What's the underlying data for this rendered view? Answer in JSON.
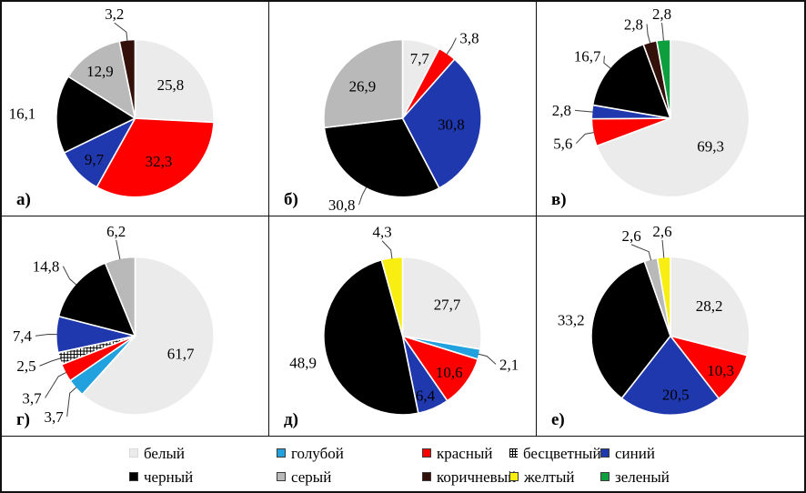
{
  "palette": {
    "white": "#ebebeb",
    "lightblue": "#21a1dd",
    "red": "#fe0000",
    "colorless": "#ffffff",
    "blue": "#2038ad",
    "black": "#000000",
    "gray": "#b9b9b9",
    "brown": "#33100a",
    "yellow": "#f8ee11",
    "green": "#0d9e3d"
  },
  "legend": {
    "rows": [
      [
        {
          "key": "white",
          "label": "белый"
        },
        {
          "key": "lightblue",
          "label": "голубой"
        },
        {
          "key": "red",
          "label": "красный"
        },
        {
          "key": "colorless",
          "label": "бесцветный"
        },
        {
          "key": "blue",
          "label": "синий"
        }
      ],
      [
        {
          "key": "black",
          "label": "черный"
        },
        {
          "key": "gray",
          "label": "серый"
        },
        {
          "key": "brown",
          "label": "коричневый"
        },
        {
          "key": "yellow",
          "label": "желтый"
        },
        {
          "key": "green",
          "label": "зеленый"
        }
      ]
    ]
  },
  "chart_data": [
    {
      "type": "pie",
      "panel": "а)",
      "legend_position": "bottom-shared",
      "start_angle_deg": 0,
      "direction": "clockwise",
      "categories": [
        "white",
        "red",
        "blue",
        "black",
        "gray",
        "brown"
      ],
      "values": [
        25.8,
        32.3,
        9.7,
        16.1,
        12.9,
        3.2
      ],
      "labels": [
        "25,8",
        "32,3",
        "9,7",
        "16,1",
        "12,9",
        "3,2"
      ],
      "label_pos": [
        "in",
        "in",
        "in",
        "out",
        "in",
        "out"
      ],
      "leader": [
        false,
        false,
        false,
        false,
        false,
        true
      ],
      "nudge": [
        [
          0,
          0
        ],
        [
          0,
          0
        ],
        [
          -6,
          8
        ],
        [
          0,
          0
        ],
        [
          -8,
          -8
        ],
        [
          -12,
          0
        ]
      ]
    },
    {
      "type": "pie",
      "panel": "б)",
      "legend_position": "bottom-shared",
      "start_angle_deg": 0,
      "direction": "clockwise",
      "categories": [
        "white",
        "red",
        "blue",
        "black",
        "gray"
      ],
      "values": [
        7.7,
        3.8,
        30.8,
        30.8,
        26.9
      ],
      "labels": [
        "7,7",
        "3,8",
        "30,8",
        "30,8",
        "26,9"
      ],
      "label_pos": [
        "in",
        "out",
        "in",
        "out",
        "in"
      ],
      "leader": [
        false,
        true,
        false,
        true,
        false
      ],
      "nudge": [
        [
          6,
          -14
        ],
        [
          0,
          0
        ],
        [
          0,
          0
        ],
        [
          0,
          0
        ],
        [
          -4,
          0
        ]
      ]
    },
    {
      "type": "pie",
      "panel": "в)",
      "legend_position": "bottom-shared",
      "start_angle_deg": 0,
      "direction": "clockwise",
      "categories": [
        "white",
        "red",
        "blue",
        "black",
        "brown",
        "green"
      ],
      "values": [
        69.3,
        5.6,
        2.8,
        16.7,
        2.8,
        2.8
      ],
      "labels": [
        "69,3",
        "5,6",
        "2,8",
        "16,7",
        "2,8",
        "2,8"
      ],
      "label_pos": [
        "in",
        "out",
        "out",
        "out",
        "out",
        "out"
      ],
      "leader": [
        false,
        true,
        true,
        true,
        true,
        true
      ],
      "nudge": [
        [
          0,
          0
        ],
        [
          0,
          8
        ],
        [
          0,
          0
        ],
        [
          8,
          0
        ],
        [
          0,
          0
        ],
        [
          0,
          0
        ]
      ]
    },
    {
      "type": "pie",
      "panel": "г)",
      "legend_position": "bottom-shared",
      "start_angle_deg": 0,
      "direction": "clockwise",
      "categories": [
        "white",
        "lightblue",
        "red",
        "colorless",
        "blue",
        "black",
        "gray"
      ],
      "values": [
        61.7,
        3.7,
        3.7,
        2.5,
        7.4,
        14.8,
        6.2
      ],
      "labels": [
        "61,7",
        "3,7",
        "3,7",
        "2,5",
        "7,4",
        "14,8",
        "6,2"
      ],
      "label_pos": [
        "in",
        "out",
        "out",
        "out",
        "out",
        "out",
        "out"
      ],
      "leader": [
        false,
        true,
        true,
        true,
        true,
        true,
        true
      ],
      "nudge": [
        [
          0,
          0
        ],
        [
          4,
          18
        ],
        [
          -6,
          18
        ],
        [
          -4,
          2
        ],
        [
          -4,
          2
        ],
        [
          0,
          -6
        ],
        [
          0,
          -2
        ]
      ]
    },
    {
      "type": "pie",
      "panel": "д)",
      "legend_position": "bottom-shared",
      "start_angle_deg": 0,
      "direction": "clockwise",
      "categories": [
        "white",
        "lightblue",
        "red",
        "blue",
        "black",
        "yellow"
      ],
      "values": [
        27.7,
        2.1,
        10.6,
        6.4,
        48.9,
        4.3
      ],
      "labels": [
        "27,7",
        "2,1",
        "10,6",
        "6,4",
        "48,9",
        "4,3"
      ],
      "label_pos": [
        "in",
        "out",
        "in",
        "in",
        "out",
        "out"
      ],
      "leader": [
        false,
        true,
        false,
        false,
        false,
        true
      ],
      "nudge": [
        [
          8,
          0
        ],
        [
          0,
          6
        ],
        [
          8,
          8
        ],
        [
          4,
          16
        ],
        [
          12,
          4
        ],
        [
          -8,
          0
        ]
      ]
    },
    {
      "type": "pie",
      "panel": "е)",
      "legend_position": "bottom-shared",
      "start_angle_deg": 0,
      "direction": "clockwise",
      "categories": [
        "white",
        "red",
        "blue",
        "black",
        "gray",
        "yellow"
      ],
      "values": [
        28.2,
        10.3,
        20.5,
        33.2,
        2.6,
        2.6
      ],
      "labels": [
        "28,2",
        "10,3",
        "20,5",
        "33,2",
        "2,6",
        "2,6"
      ],
      "label_pos": [
        "in",
        "in",
        "in",
        "out",
        "out",
        "out"
      ],
      "leader": [
        false,
        false,
        false,
        false,
        true,
        true
      ],
      "nudge": [
        [
          0,
          0
        ],
        [
          10,
          8
        ],
        [
          6,
          10
        ],
        [
          14,
          0
        ],
        [
          -16,
          2
        ],
        [
          0,
          0
        ]
      ]
    }
  ]
}
